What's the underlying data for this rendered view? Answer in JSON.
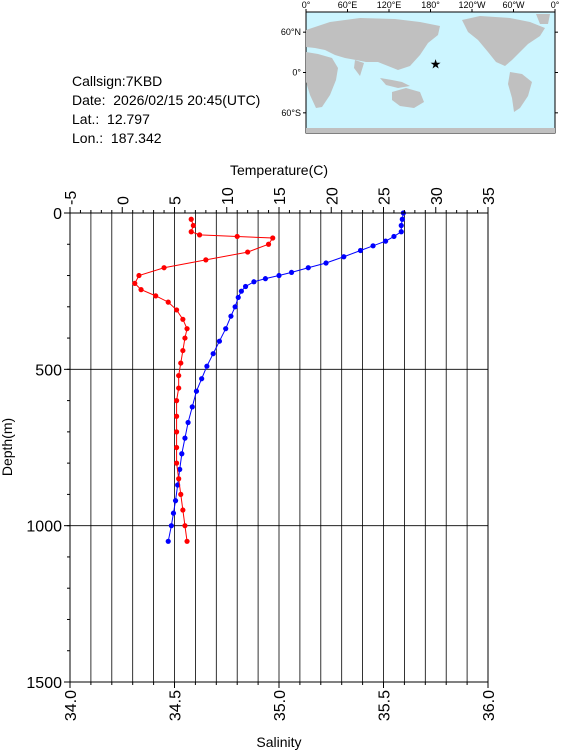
{
  "station": {
    "callsign_label": "Callsign:",
    "callsign": "7KBD",
    "date_label": "Date:",
    "date": "2026/02/15 20:45(UTC)",
    "lat_label": "Lat.:",
    "lat": "12.797",
    "lon_label": "Lon.:",
    "lon": "187.342"
  },
  "map": {
    "lon_ticks": [
      "0°",
      "60°E",
      "120°E",
      "180°",
      "120°W",
      "60°W",
      "0°"
    ],
    "lat_ticks": [
      "60°N",
      "0°",
      "60°S"
    ],
    "marker": {
      "lon": 187.342,
      "lat": 12.797
    },
    "ocean_color": "#ccf5ff",
    "land_color": "#c0c0c0",
    "marker_color": "#ff0000"
  },
  "chart_data": {
    "type": "line",
    "ylabel": "Depth(m)",
    "ylim": [
      0,
      1500
    ],
    "y_ticks": [
      0,
      500,
      1000,
      1500
    ],
    "y_inverted": true,
    "top_axis": {
      "label": "Temperature(C)",
      "range": [
        -5,
        35
      ],
      "ticks": [
        -5,
        0,
        5,
        10,
        15,
        20,
        25,
        30,
        35
      ]
    },
    "bottom_axis": {
      "label": "Salinity",
      "range": [
        34.0,
        36.0
      ],
      "ticks": [
        "34.0",
        "34.5",
        "35.0",
        "35.5",
        "36.0"
      ]
    },
    "grid": true,
    "series": [
      {
        "axis": "top",
        "color": "#0000ff",
        "points": [
          [
            26.9,
            0
          ],
          [
            26.8,
            20
          ],
          [
            26.7,
            40
          ],
          [
            26.7,
            60
          ],
          [
            26.0,
            75
          ],
          [
            25.2,
            90
          ],
          [
            24.0,
            105
          ],
          [
            22.8,
            120
          ],
          [
            21.2,
            140
          ],
          [
            19.5,
            160
          ],
          [
            17.8,
            175
          ],
          [
            16.2,
            190
          ],
          [
            15.0,
            200
          ],
          [
            13.7,
            210
          ],
          [
            12.6,
            220
          ],
          [
            11.8,
            235
          ],
          [
            11.4,
            250
          ],
          [
            11.1,
            270
          ],
          [
            10.8,
            300
          ],
          [
            10.4,
            330
          ],
          [
            9.9,
            370
          ],
          [
            9.3,
            410
          ],
          [
            8.7,
            450
          ],
          [
            8.1,
            490
          ],
          [
            7.6,
            530
          ],
          [
            7.1,
            570
          ],
          [
            6.7,
            620
          ],
          [
            6.3,
            670
          ],
          [
            6.0,
            720
          ],
          [
            5.7,
            770
          ],
          [
            5.5,
            820
          ],
          [
            5.3,
            870
          ],
          [
            5.1,
            920
          ],
          [
            4.9,
            960
          ],
          [
            4.7,
            1000
          ],
          [
            4.4,
            1050
          ]
        ]
      },
      {
        "axis": "bottom",
        "color": "#ff0000",
        "points": [
          [
            34.58,
            20
          ],
          [
            34.59,
            40
          ],
          [
            34.58,
            60
          ],
          [
            34.62,
            70
          ],
          [
            34.8,
            75
          ],
          [
            34.97,
            80
          ],
          [
            34.95,
            100
          ],
          [
            34.85,
            125
          ],
          [
            34.65,
            150
          ],
          [
            34.45,
            175
          ],
          [
            34.33,
            200
          ],
          [
            34.31,
            225
          ],
          [
            34.34,
            245
          ],
          [
            34.41,
            265
          ],
          [
            34.47,
            285
          ],
          [
            34.51,
            310
          ],
          [
            34.54,
            340
          ],
          [
            34.56,
            370
          ],
          [
            34.55,
            400
          ],
          [
            34.54,
            440
          ],
          [
            34.53,
            480
          ],
          [
            34.52,
            520
          ],
          [
            34.52,
            560
          ],
          [
            34.51,
            600
          ],
          [
            34.51,
            650
          ],
          [
            34.51,
            700
          ],
          [
            34.51,
            750
          ],
          [
            34.51,
            800
          ],
          [
            34.52,
            850
          ],
          [
            34.53,
            900
          ],
          [
            34.54,
            950
          ],
          [
            34.55,
            1000
          ],
          [
            34.56,
            1050
          ]
        ]
      }
    ]
  }
}
